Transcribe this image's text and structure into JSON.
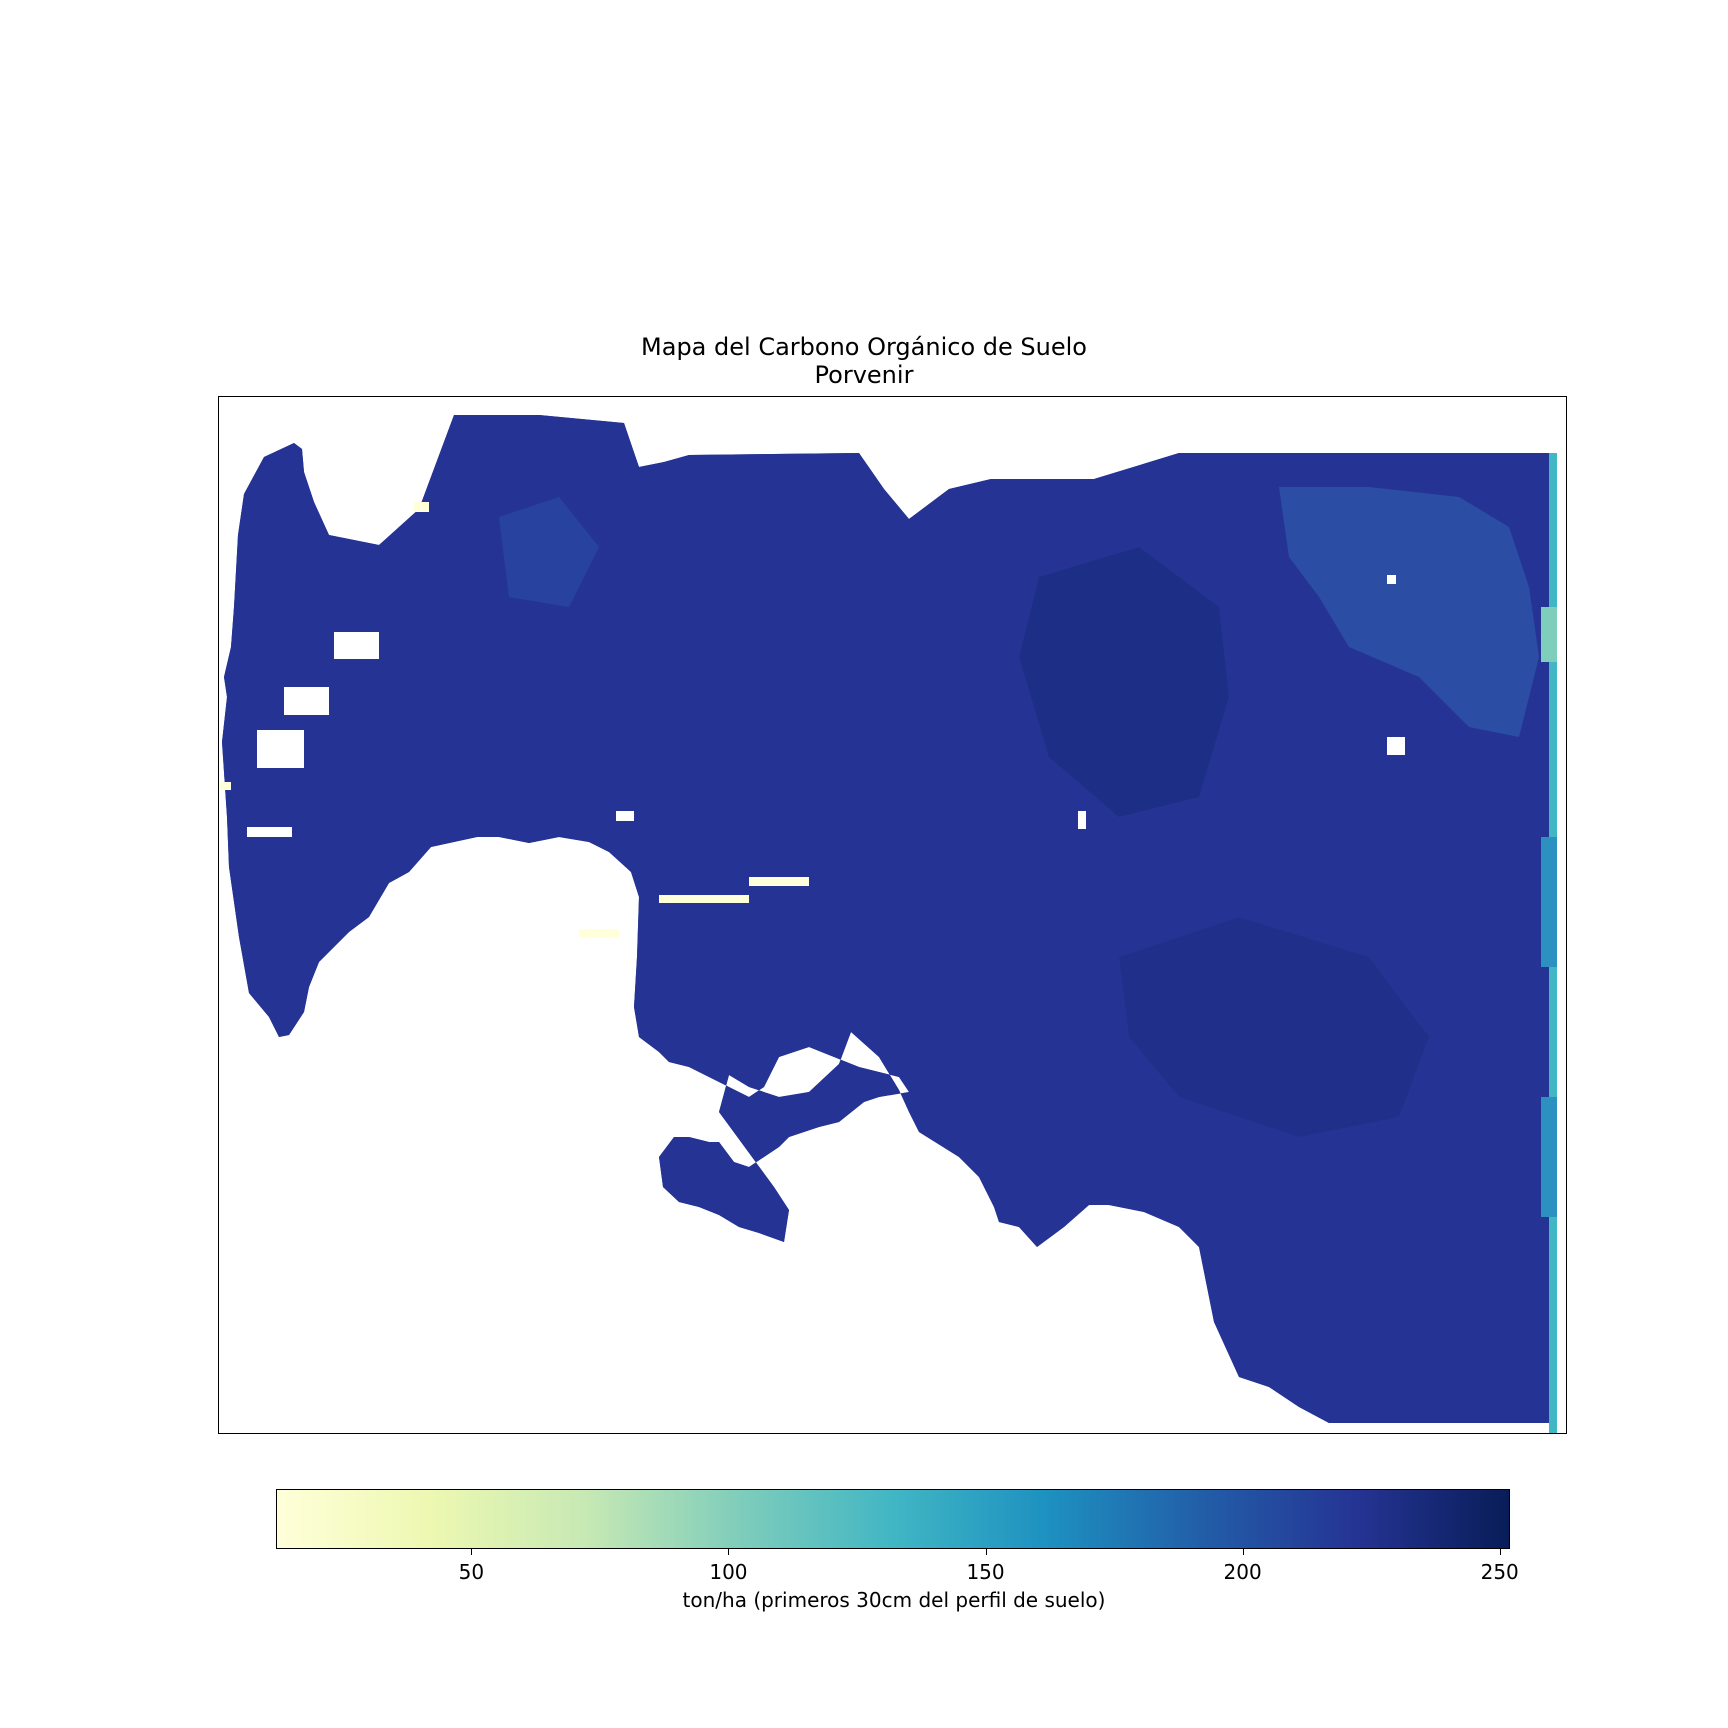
{
  "title": {
    "line1": "Mapa del Carbono Orgánico de Suelo",
    "line2": "Porvenir"
  },
  "map": {
    "colormap": "YlGnBu",
    "value_range": [
      12,
      252
    ],
    "dominant_value_range": [
      200,
      240
    ],
    "land_color": "#253494",
    "dark_color": "#172a7a",
    "edge_color": "#41b6c4",
    "coast_color": "#ffffd9",
    "background_color": "#ffffff"
  },
  "colorbar": {
    "min": 12,
    "max": 252,
    "ticks": [
      "50",
      "100",
      "150",
      "200",
      "250"
    ],
    "label": "ton/ha (primeros 30cm del perfil de suelo)",
    "stops": [
      "#ffffd9",
      "#edf8b1",
      "#c7e9b4",
      "#7fcdbb",
      "#41b6c4",
      "#1d91c0",
      "#225ea8",
      "#253494",
      "#081d58"
    ]
  }
}
